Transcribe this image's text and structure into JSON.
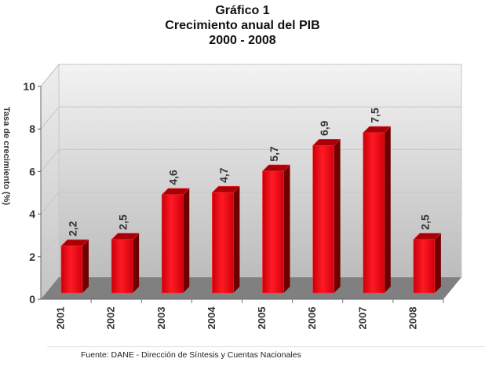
{
  "header": {
    "title_line1": "Gráfico 1",
    "title_line2": "Crecimiento anual del PIB",
    "title_line3": "2000 - 2008"
  },
  "footer": {
    "source": "Fuente: DANE - Dirección de Síntesis y Cuentas Nacionales"
  },
  "colors": {
    "bar": "#e8101a",
    "bar_side": "#6e0000",
    "bar_top": "#a80008",
    "floor": "#808080",
    "wall_top": "#f2f2f2",
    "wall_bottom": "#bdbdbd"
  },
  "chart_data": {
    "type": "bar",
    "title": "Gráfico 1 — Crecimiento anual del PIB 2000 - 2008",
    "xlabel": "",
    "ylabel": "Tasa de crecimiento (%)",
    "categories": [
      "2001",
      "2002",
      "2003",
      "2004",
      "2005",
      "2006",
      "2007",
      "2008"
    ],
    "values": [
      2.2,
      2.5,
      4.6,
      4.7,
      5.7,
      6.9,
      7.5,
      2.5
    ],
    "value_labels": [
      "2,2",
      "2,5",
      "4,6",
      "4,7",
      "5,7",
      "6,9",
      "7,5",
      "2,5"
    ],
    "ylim": [
      0,
      10
    ],
    "yticks": [
      0,
      2,
      4,
      6,
      8,
      10
    ],
    "grid": true,
    "legend": "none",
    "style": "3d-column"
  }
}
